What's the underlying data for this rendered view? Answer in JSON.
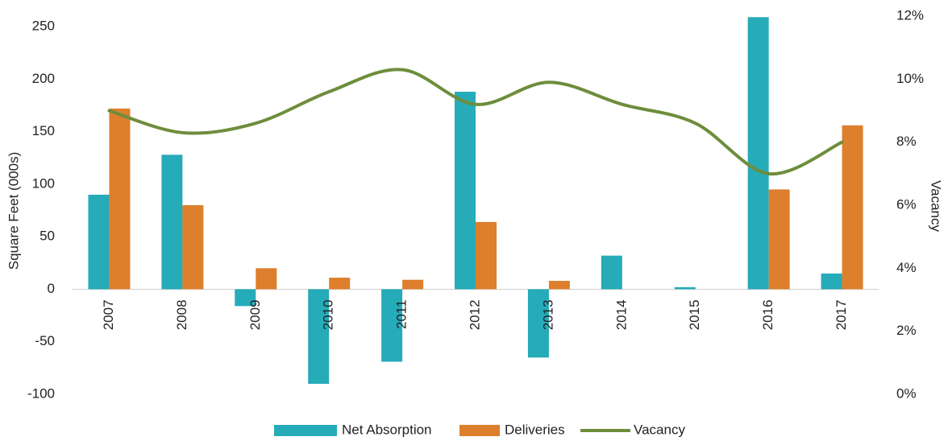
{
  "chart_data": {
    "type": "bar",
    "categories": [
      "2007",
      "2008",
      "2009",
      "2010",
      "2011",
      "2012",
      "2013",
      "2014",
      "2015",
      "2016",
      "2017"
    ],
    "series": [
      {
        "name": "Net Absorption",
        "type": "bar",
        "color": "#26abb8",
        "values": [
          90,
          128,
          -16,
          -90,
          -69,
          188,
          -65,
          32,
          2,
          259,
          15
        ]
      },
      {
        "name": "Deliveries",
        "type": "bar",
        "color": "#dd7f2c",
        "values": [
          172,
          80,
          20,
          11,
          9,
          64,
          8,
          0,
          0,
          95,
          156
        ]
      },
      {
        "name": "Vacancy",
        "type": "line",
        "axis": "y2",
        "color": "#6e8d3c",
        "values": [
          9.0,
          8.3,
          8.6,
          9.6,
          10.3,
          9.2,
          9.9,
          9.2,
          8.6,
          7.0,
          8.0
        ]
      }
    ],
    "y_label": "Square Feet (000s)",
    "y2_label": "Vacancy",
    "ylim": [
      -100,
      260
    ],
    "yticks": [
      -100,
      -50,
      0,
      50,
      100,
      150,
      200,
      250
    ],
    "y2lim": [
      0,
      12
    ],
    "y2ticks": [
      {
        "value": 0,
        "label": "0%"
      },
      {
        "value": 2,
        "label": "2%"
      },
      {
        "value": 4,
        "label": "4%"
      },
      {
        "value": 6,
        "label": "6%"
      },
      {
        "value": 8,
        "label": "8%"
      },
      {
        "value": 10,
        "label": "10%"
      },
      {
        "value": 12,
        "label": "12%"
      }
    ],
    "legend": "bottom",
    "grid": false
  }
}
